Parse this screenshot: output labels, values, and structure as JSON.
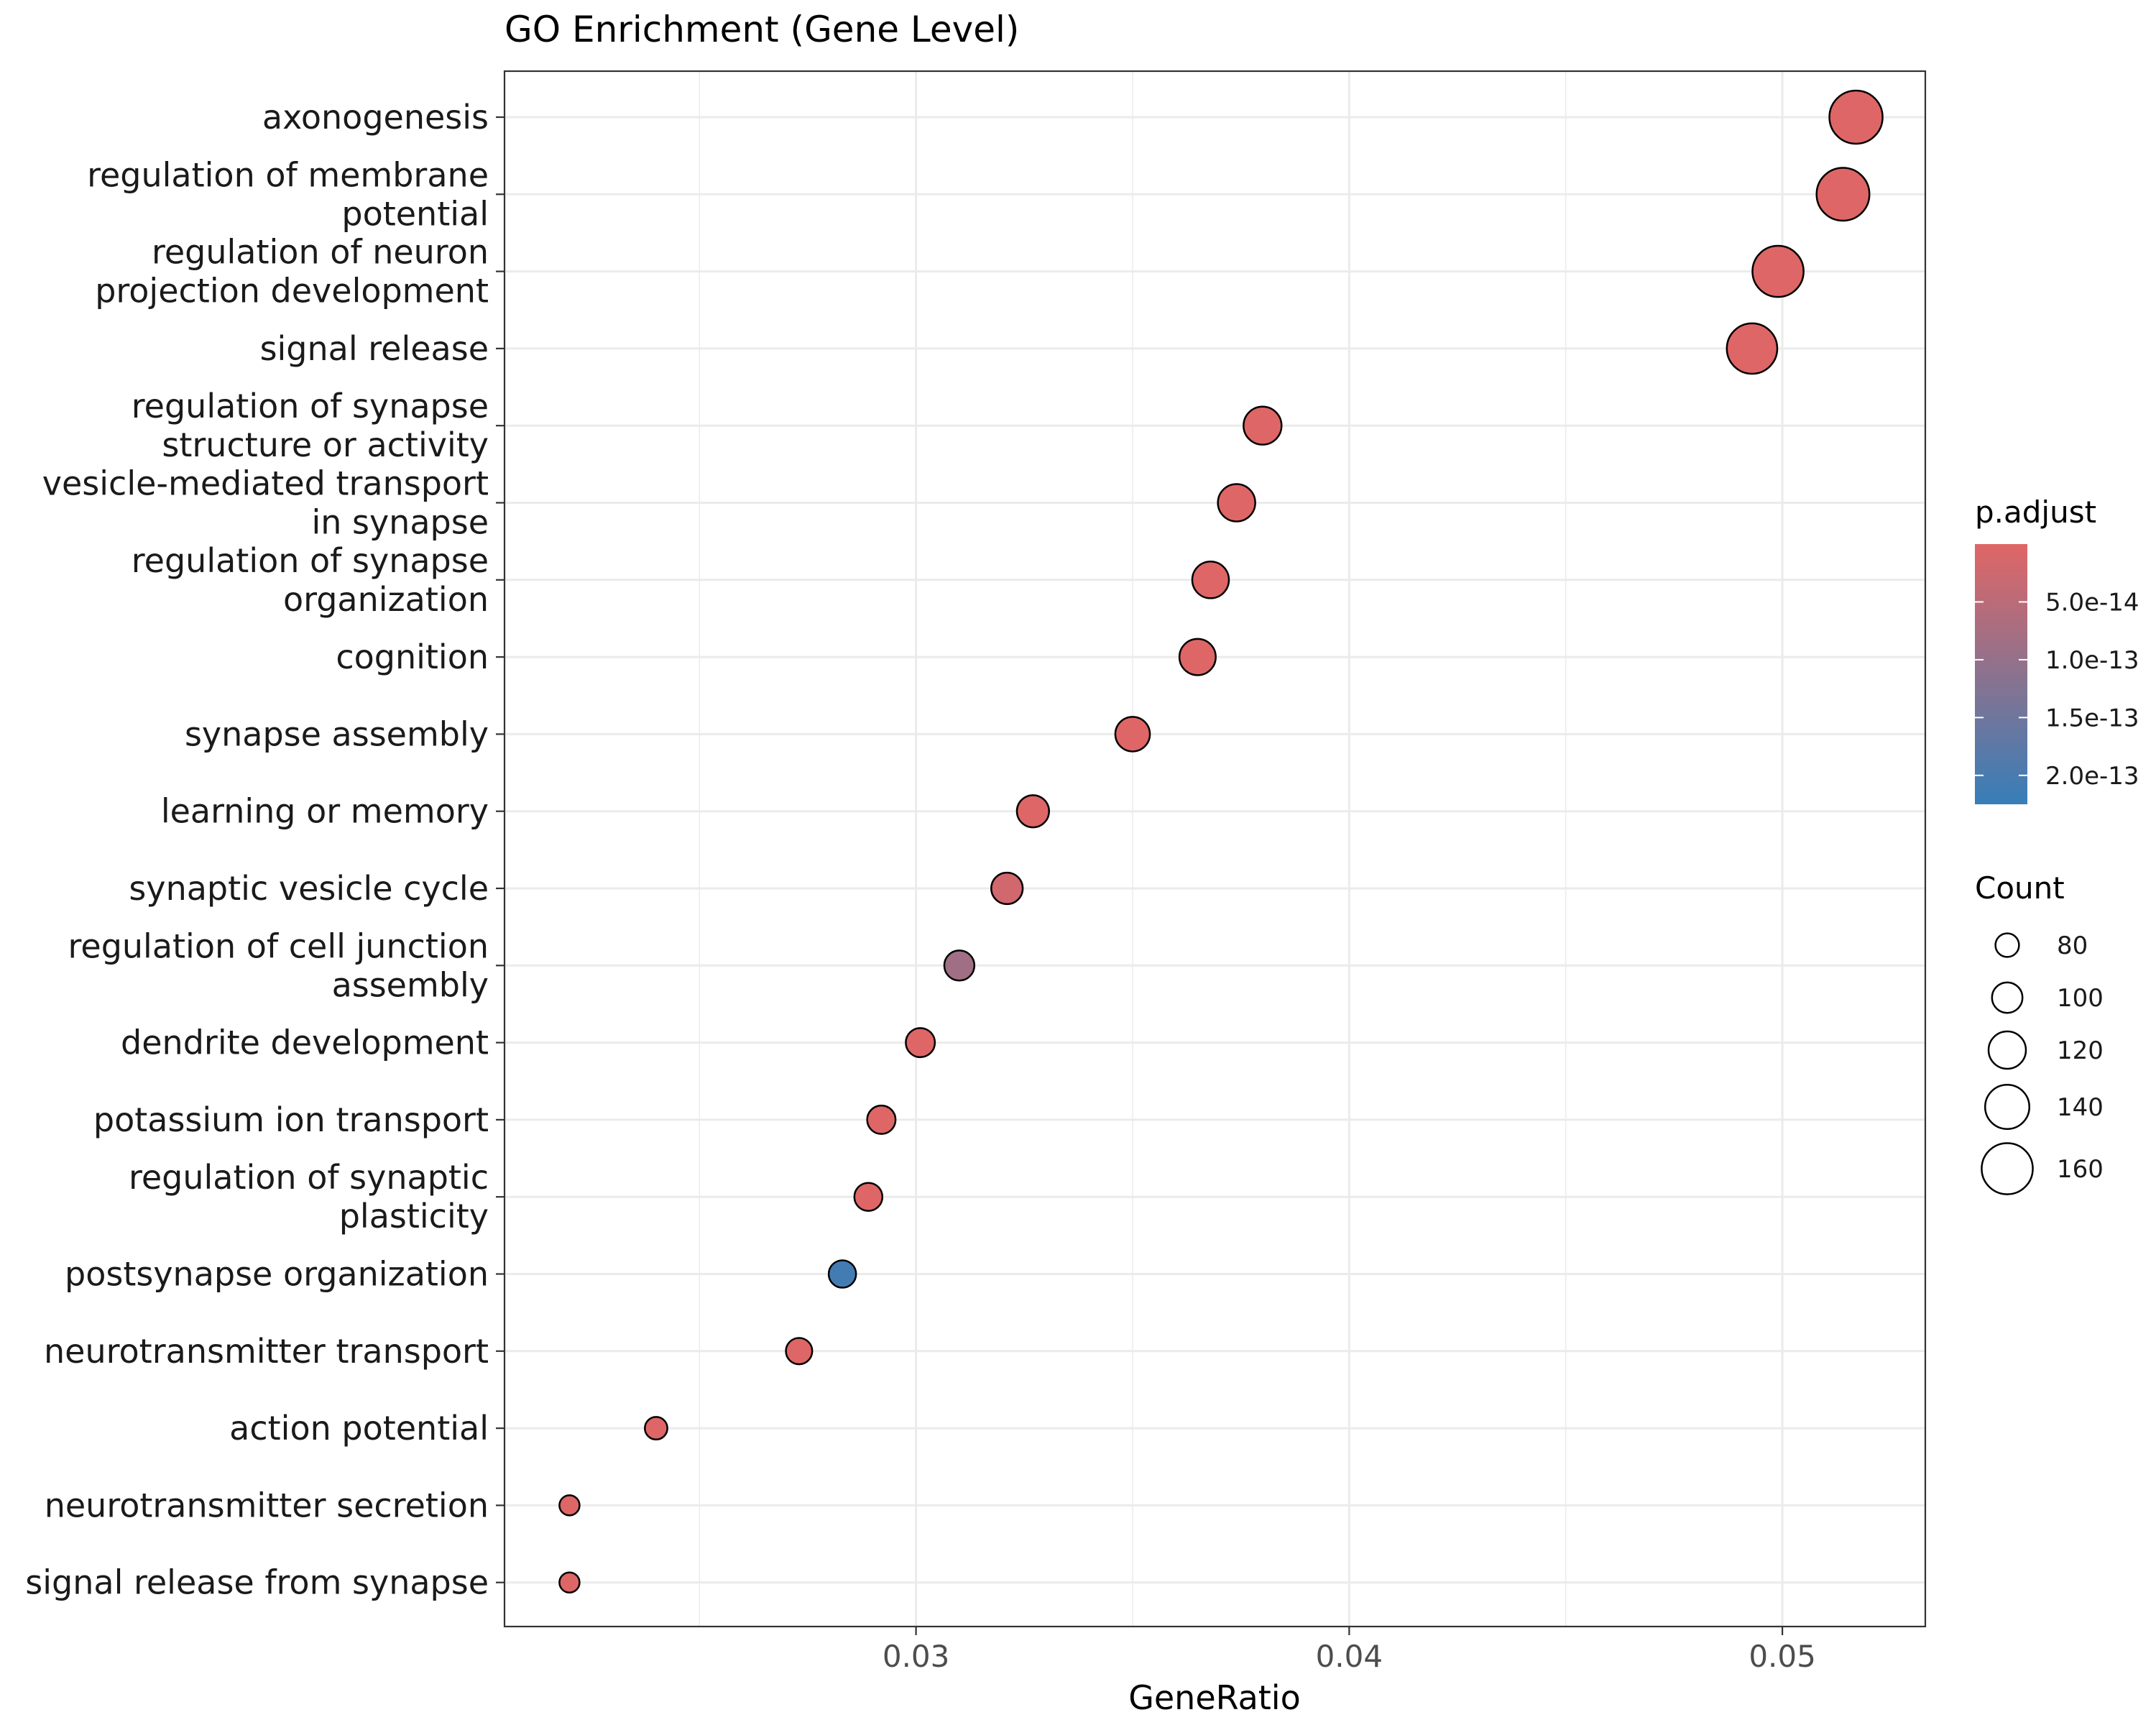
{
  "chart_data": {
    "type": "scatter",
    "title": "GO Enrichment (Gene Level)",
    "xlabel": "GeneRatio",
    "ylabel": "",
    "xlim": [
      0.0205,
      0.0533
    ],
    "x_ticks": [
      0.03,
      0.04,
      0.05
    ],
    "x_tick_labels": [
      "0.03",
      "0.04",
      "0.05"
    ],
    "grid": true,
    "legend_position": "right",
    "categories": [
      "axonogenesis",
      "regulation of membrane\npotential",
      "regulation of neuron\nprojection development",
      "signal release",
      "regulation of synapse\nstructure or activity",
      "vesicle-mediated transport\nin synapse",
      "regulation of synapse\norganization",
      "cognition",
      "synapse assembly",
      "learning or memory",
      "synaptic vesicle cycle",
      "regulation of cell junction\nassembly",
      "dendrite development",
      "potassium ion transport",
      "regulation of synaptic\nplasticity",
      "postsynapse organization",
      "neurotransmitter transport",
      "action potential",
      "neurotransmitter secretion",
      "signal release from synapse"
    ],
    "points": [
      {
        "term": "axonogenesis",
        "gene_ratio": 0.0517,
        "count": 166,
        "p_adjust": 1e-15
      },
      {
        "term": "regulation of membrane potential",
        "gene_ratio": 0.0514,
        "count": 165,
        "p_adjust": 1e-15
      },
      {
        "term": "regulation of neuron projection development",
        "gene_ratio": 0.0499,
        "count": 160,
        "p_adjust": 1e-15
      },
      {
        "term": "signal release",
        "gene_ratio": 0.0493,
        "count": 158,
        "p_adjust": 1e-15
      },
      {
        "term": "regulation of synapse structure or activity",
        "gene_ratio": 0.038,
        "count": 122,
        "p_adjust": 1e-15
      },
      {
        "term": "vesicle-mediated transport in synapse",
        "gene_ratio": 0.0374,
        "count": 120,
        "p_adjust": 1e-15
      },
      {
        "term": "regulation of synapse organization",
        "gene_ratio": 0.0368,
        "count": 118,
        "p_adjust": 1e-15
      },
      {
        "term": "cognition",
        "gene_ratio": 0.0365,
        "count": 117,
        "p_adjust": 1e-15
      },
      {
        "term": "synapse assembly",
        "gene_ratio": 0.035,
        "count": 112,
        "p_adjust": 1e-15
      },
      {
        "term": "learning or memory",
        "gene_ratio": 0.0327,
        "count": 105,
        "p_adjust": 1e-15
      },
      {
        "term": "synaptic vesicle cycle",
        "gene_ratio": 0.0321,
        "count": 103,
        "p_adjust": 2e-14
      },
      {
        "term": "regulation of cell junction assembly",
        "gene_ratio": 0.031,
        "count": 99,
        "p_adjust": 8.5e-14
      },
      {
        "term": "dendrite development",
        "gene_ratio": 0.0301,
        "count": 96,
        "p_adjust": 1e-15
      },
      {
        "term": "potassium ion transport",
        "gene_ratio": 0.0292,
        "count": 94,
        "p_adjust": 1e-15
      },
      {
        "term": "regulation of synaptic plasticity",
        "gene_ratio": 0.0289,
        "count": 93,
        "p_adjust": 1e-15
      },
      {
        "term": "postsynapse organization",
        "gene_ratio": 0.0283,
        "count": 91,
        "p_adjust": 2.1e-13
      },
      {
        "term": "neurotransmitter transport",
        "gene_ratio": 0.0273,
        "count": 88,
        "p_adjust": 1e-15
      },
      {
        "term": "action potential",
        "gene_ratio": 0.024,
        "count": 77,
        "p_adjust": 1e-15
      },
      {
        "term": "neurotransmitter secretion",
        "gene_ratio": 0.022,
        "count": 70,
        "p_adjust": 1e-15
      },
      {
        "term": "signal release from synapse",
        "gene_ratio": 0.022,
        "count": 70,
        "p_adjust": 1e-15
      }
    ],
    "color_legend": {
      "title": "p.adjust",
      "range": [
        0.0,
        2.25e-13
      ],
      "ticks": [
        5e-14,
        1e-13,
        1.5e-13,
        2e-13
      ],
      "tick_labels": [
        "5.0e-14",
        "1.0e-13",
        "1.5e-13",
        "2.0e-13"
      ],
      "low_color": "#e06666",
      "high_color": "#377eb8"
    },
    "size_legend": {
      "title": "Count",
      "values": [
        80,
        100,
        120,
        140,
        160
      ],
      "labels": [
        "80",
        "100",
        "120",
        "140",
        "160"
      ]
    },
    "colors": {
      "point_outline": "#000000",
      "grid": "#ebebeb",
      "panel_border": "#333333"
    }
  }
}
